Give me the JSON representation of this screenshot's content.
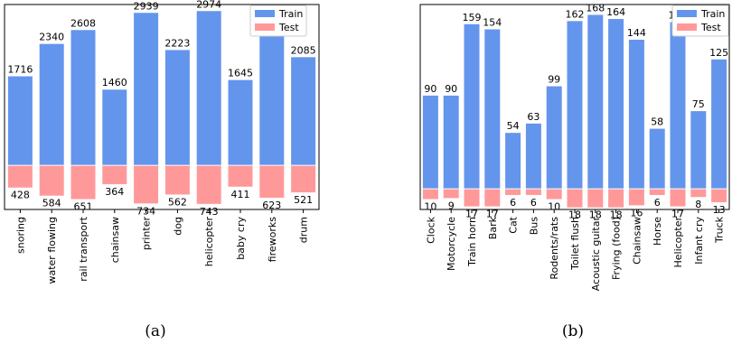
{
  "colors": {
    "train": "#6495ED",
    "test": "#FF9999",
    "frame": "#000000"
  },
  "chart_data": [
    {
      "type": "bar",
      "caption": "(a)",
      "categories": [
        "snoring",
        "water flowing",
        "rail transport",
        "chainsaw",
        "printer",
        "dog",
        "helicopter",
        "baby cry",
        "fireworks",
        "drum"
      ],
      "series": [
        {
          "name": "Train",
          "values": [
            1716,
            2340,
            2608,
            1460,
            2939,
            2223,
            2974,
            1645,
            2492,
            2085
          ]
        },
        {
          "name": "Test",
          "values": [
            428,
            584,
            651,
            364,
            734,
            562,
            743,
            411,
            623,
            521
          ]
        }
      ],
      "legend": "top-right",
      "grid": false,
      "ylim": [
        -850,
        3100
      ]
    },
    {
      "type": "bar",
      "caption": "(b)",
      "categories": [
        "Clock",
        "Motorcycle",
        "Train horn",
        "Bark",
        "Cat",
        "Bus",
        "Rodents/rats",
        "Toilet flush",
        "Acoustic guitar",
        "Frying (food)",
        "Chainsaw",
        "Horse",
        "Helicopter",
        "Infant cry",
        "Truck"
      ],
      "series": [
        {
          "name": "Train",
          "values": [
            90,
            90,
            159,
            154,
            54,
            63,
            99,
            162,
            168,
            164,
            144,
            58,
            161,
            75,
            125
          ]
        },
        {
          "name": "Test",
          "values": [
            10,
            9,
            17,
            17,
            6,
            6,
            10,
            18,
            18,
            18,
            16,
            6,
            17,
            8,
            13
          ]
        }
      ],
      "legend": "top-right",
      "grid": false,
      "ylim": [
        -20,
        178
      ]
    }
  ]
}
